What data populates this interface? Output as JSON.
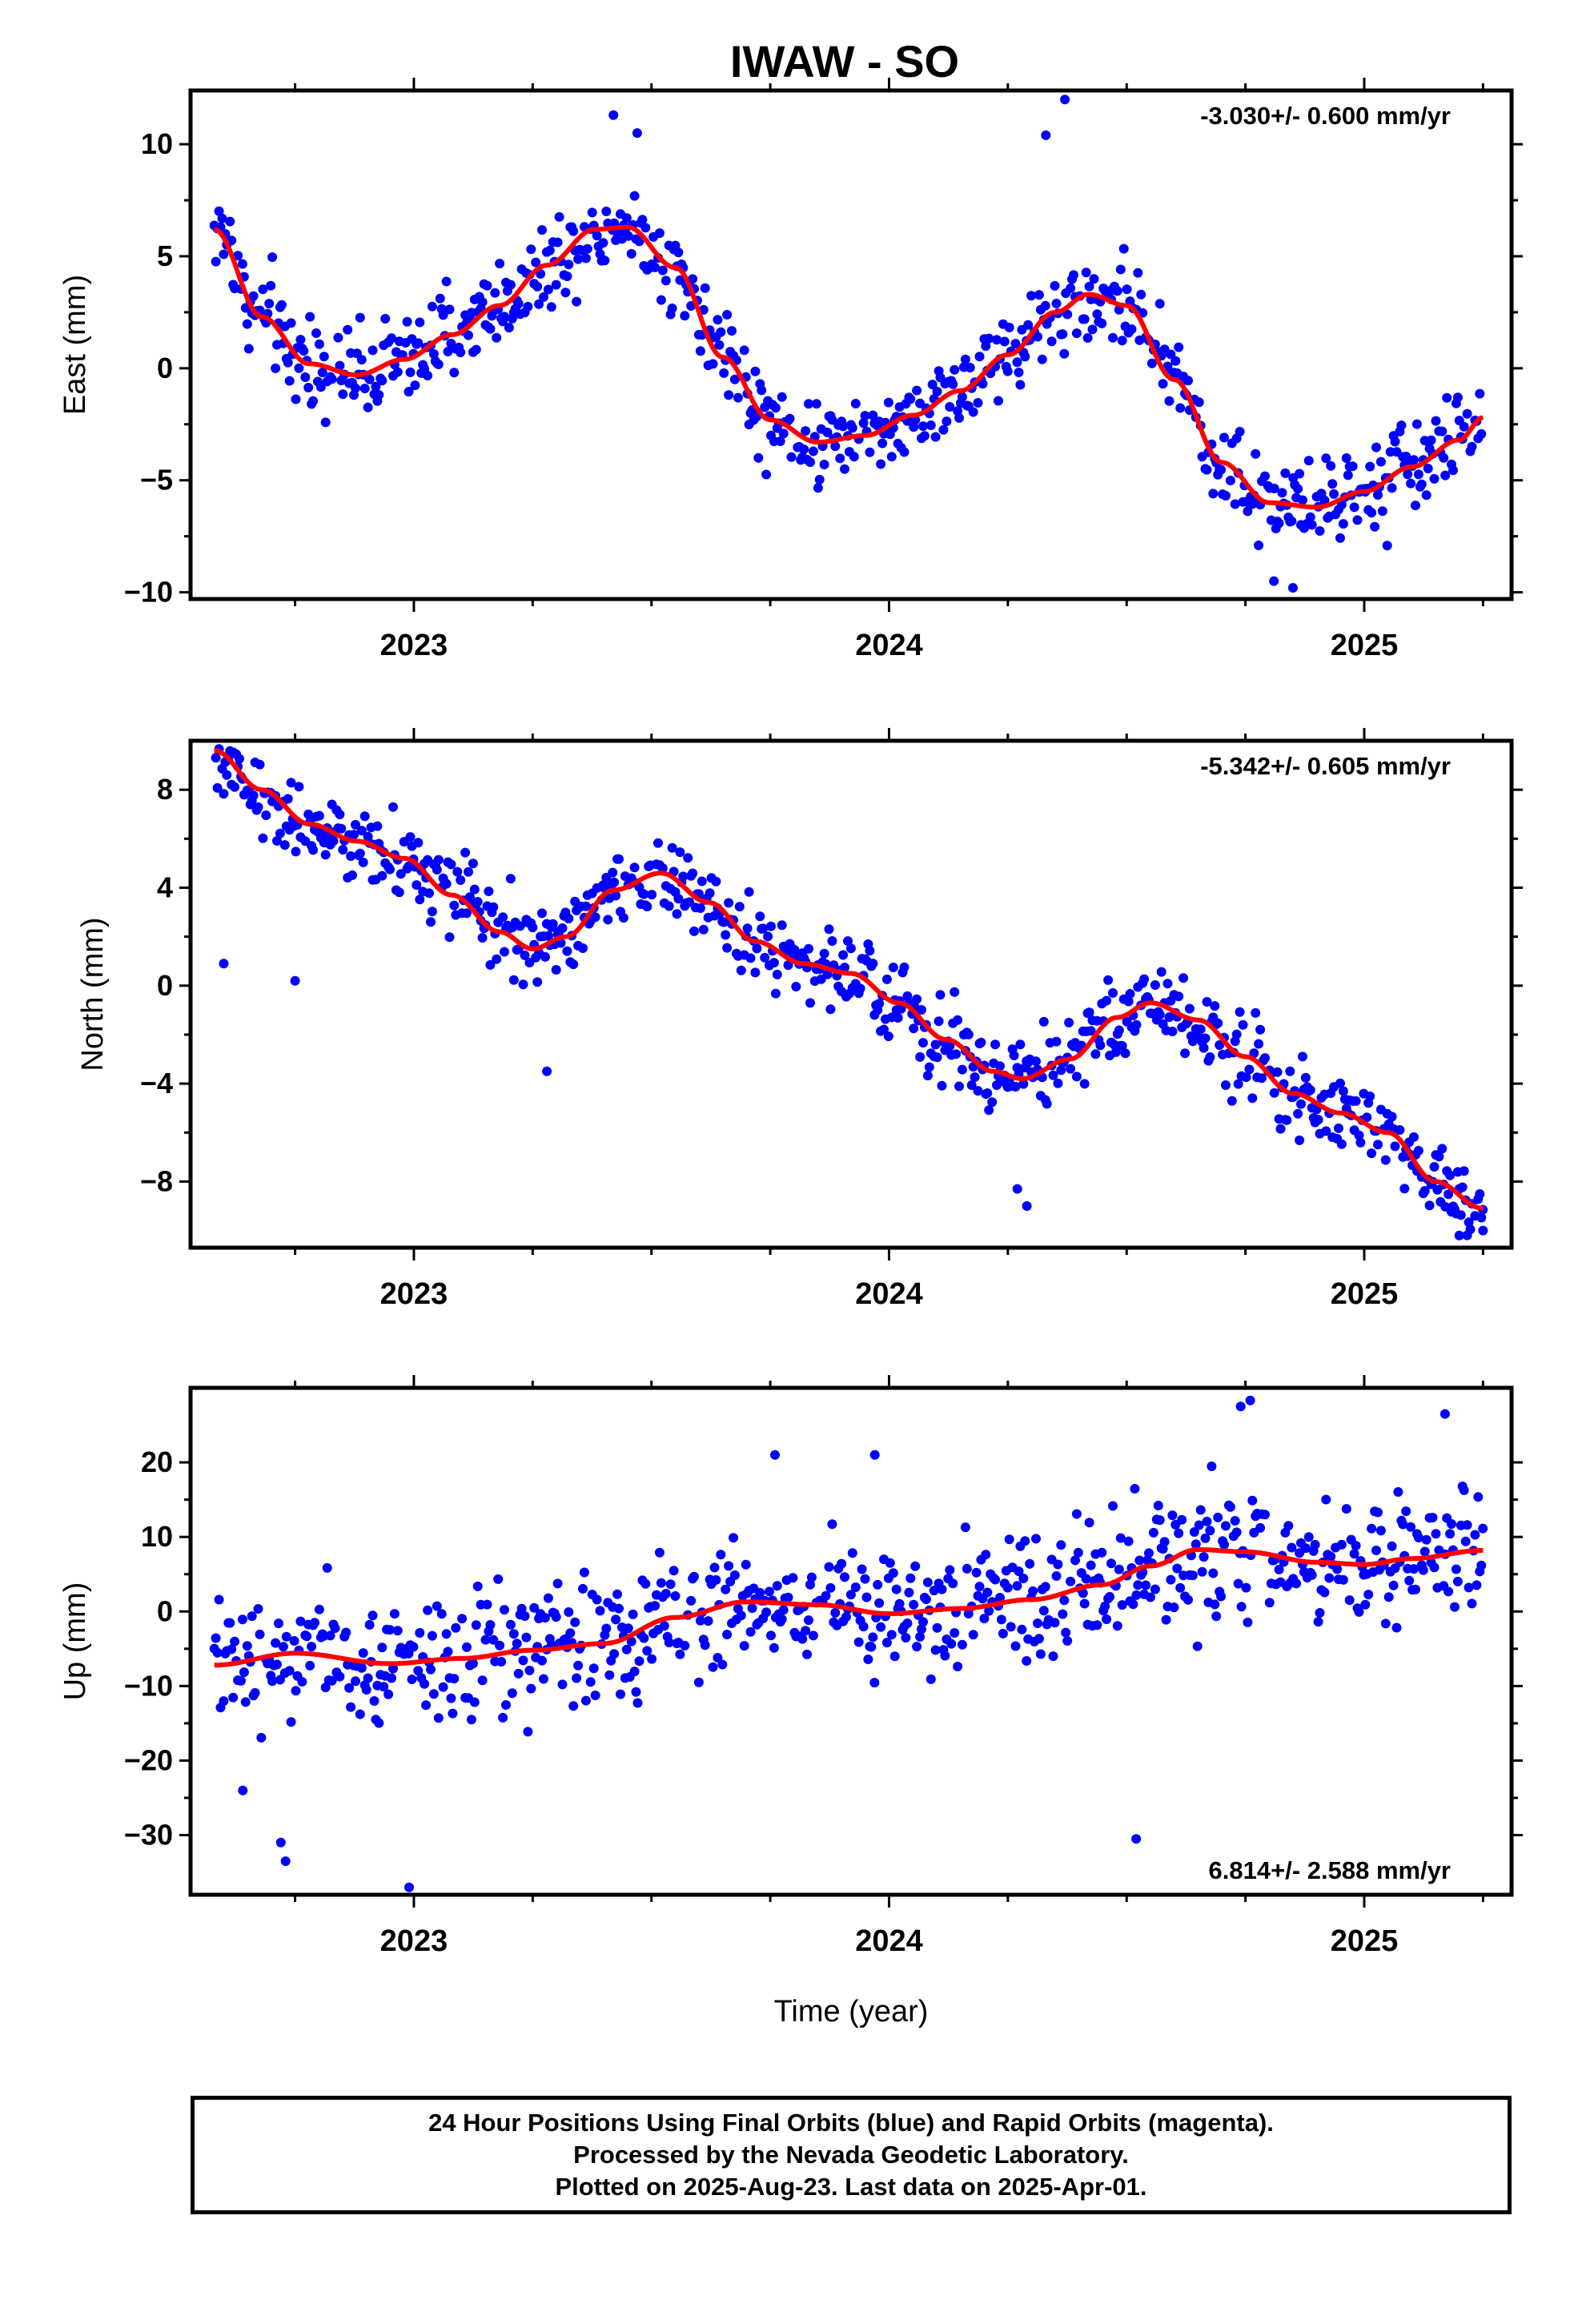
{
  "title": "IWAW - SO",
  "footer": {
    "line1": "24 Hour Positions Using Final Orbits (blue) and Rapid Orbits (magenta).",
    "line2": "Processed by the Nevada Geodetic Laboratory.",
    "line3": "Plotted on 2025-Aug-23. Last data on 2025-Apr-01."
  },
  "colors": {
    "points": "#0000ff",
    "fit": "#ff0000",
    "axes": "#000000"
  },
  "chart_data": [
    {
      "type": "scatter",
      "ylabel": "East (mm)",
      "rate_label": "-3.030+/- 0.600 mm/yr",
      "rate_position": "top-right",
      "xlim": [
        2022.53,
        2025.31
      ],
      "ylim": [
        -10.3,
        12.4
      ],
      "x_ticks": [
        "2023",
        "2024",
        "2025"
      ],
      "y_ticks": [
        -10,
        -5,
        0,
        5,
        10
      ],
      "fit": {
        "x": [
          2022.58,
          2022.68,
          2022.78,
          2022.88,
          2022.98,
          2023.08,
          2023.18,
          2023.28,
          2023.38,
          2023.45,
          2023.55,
          2023.65,
          2023.75,
          2023.85,
          2023.95,
          2024.05,
          2024.15,
          2024.25,
          2024.35,
          2024.42,
          2024.5,
          2024.6,
          2024.7,
          2024.8,
          2024.9,
          2025.0,
          2025.1,
          2025.2,
          2025.25
        ],
        "y": [
          6.2,
          2.3,
          0.2,
          -0.3,
          0.4,
          1.5,
          2.8,
          4.6,
          6.2,
          6.3,
          4.5,
          0.5,
          -2.3,
          -3.3,
          -3.0,
          -2.1,
          -1.0,
          0.6,
          2.5,
          3.3,
          2.8,
          -0.5,
          -4.2,
          -6.0,
          -6.2,
          -5.5,
          -4.4,
          -3.2,
          -2.2
        ]
      },
      "noise": 1.4,
      "outliers": [
        [
          2023.42,
          11.3
        ],
        [
          2023.47,
          10.5
        ],
        [
          2024.33,
          10.4
        ],
        [
          2024.37,
          12.0
        ],
        [
          2024.81,
          -9.5
        ],
        [
          2024.85,
          -9.8
        ]
      ]
    },
    {
      "type": "scatter",
      "ylabel": "North (mm)",
      "rate_label": "-5.342+/- 0.605 mm/yr",
      "rate_position": "top-right",
      "xlim": [
        2022.53,
        2025.31
      ],
      "ylim": [
        -10.7,
        10.0
      ],
      "x_ticks": [
        "2023",
        "2024",
        "2025"
      ],
      "y_ticks": [
        -8,
        -4,
        0,
        4,
        8
      ],
      "fit": {
        "x": [
          2022.58,
          2022.68,
          2022.78,
          2022.88,
          2022.98,
          2023.08,
          2023.18,
          2023.25,
          2023.32,
          2023.42,
          2023.52,
          2023.62,
          2023.72,
          2023.82,
          2023.92,
          2024.02,
          2024.12,
          2024.22,
          2024.28,
          2024.38,
          2024.48,
          2024.55,
          2024.65,
          2024.75,
          2024.85,
          2024.95,
          2025.05,
          2025.15,
          2025.25
        ],
        "y": [
          9.6,
          8.0,
          6.6,
          5.9,
          5.2,
          3.7,
          2.2,
          1.5,
          2.0,
          3.9,
          4.6,
          3.4,
          1.8,
          0.9,
          0.5,
          -0.7,
          -2.2,
          -3.5,
          -3.8,
          -3.0,
          -1.3,
          -0.7,
          -1.4,
          -2.9,
          -4.4,
          -5.2,
          -6.0,
          -8.0,
          -9.1
        ]
      },
      "noise": 1.15,
      "outliers": [
        [
          2022.6,
          0.9
        ],
        [
          2022.75,
          0.2
        ],
        [
          2023.28,
          -3.5
        ],
        [
          2024.27,
          -8.3
        ],
        [
          2024.29,
          -9.0
        ],
        [
          2025.2,
          -10.2
        ],
        [
          2025.25,
          -10.0
        ]
      ]
    },
    {
      "type": "scatter",
      "ylabel": "Up (mm)",
      "xlabel": "Time (year)",
      "rate_label": "6.814+/- 2.588 mm/yr",
      "rate_position": "bottom-right",
      "xlim": [
        2022.53,
        2025.31
      ],
      "ylim": [
        -38.0,
        30.0
      ],
      "x_ticks": [
        "2023",
        "2024",
        "2025"
      ],
      "y_ticks": [
        -30,
        -20,
        -10,
        0,
        10,
        20
      ],
      "fit": {
        "x": [
          2022.58,
          2022.75,
          2022.95,
          2023.1,
          2023.25,
          2023.4,
          2023.55,
          2023.7,
          2023.85,
          2024.0,
          2024.15,
          2024.3,
          2024.45,
          2024.55,
          2024.65,
          2024.75,
          2024.9,
          2025.0,
          2025.1,
          2025.25
        ],
        "y": [
          -7.2,
          -5.6,
          -7.0,
          -6.3,
          -5.2,
          -4.3,
          -0.8,
          1.3,
          0.9,
          -0.3,
          0.4,
          1.6,
          3.6,
          6.1,
          8.3,
          8.0,
          6.6,
          6.3,
          7.1,
          8.2
        ]
      },
      "noise": 6.0,
      "outliers": [
        [
          2022.64,
          -24.0
        ],
        [
          2022.72,
          -31.0
        ],
        [
          2022.73,
          -33.5
        ],
        [
          2022.99,
          -37.0
        ],
        [
          2024.52,
          -30.5
        ],
        [
          2024.74,
          27.5
        ],
        [
          2024.76,
          28.3
        ],
        [
          2025.17,
          26.5
        ],
        [
          2023.76,
          21.0
        ],
        [
          2023.97,
          21.0
        ]
      ]
    }
  ]
}
